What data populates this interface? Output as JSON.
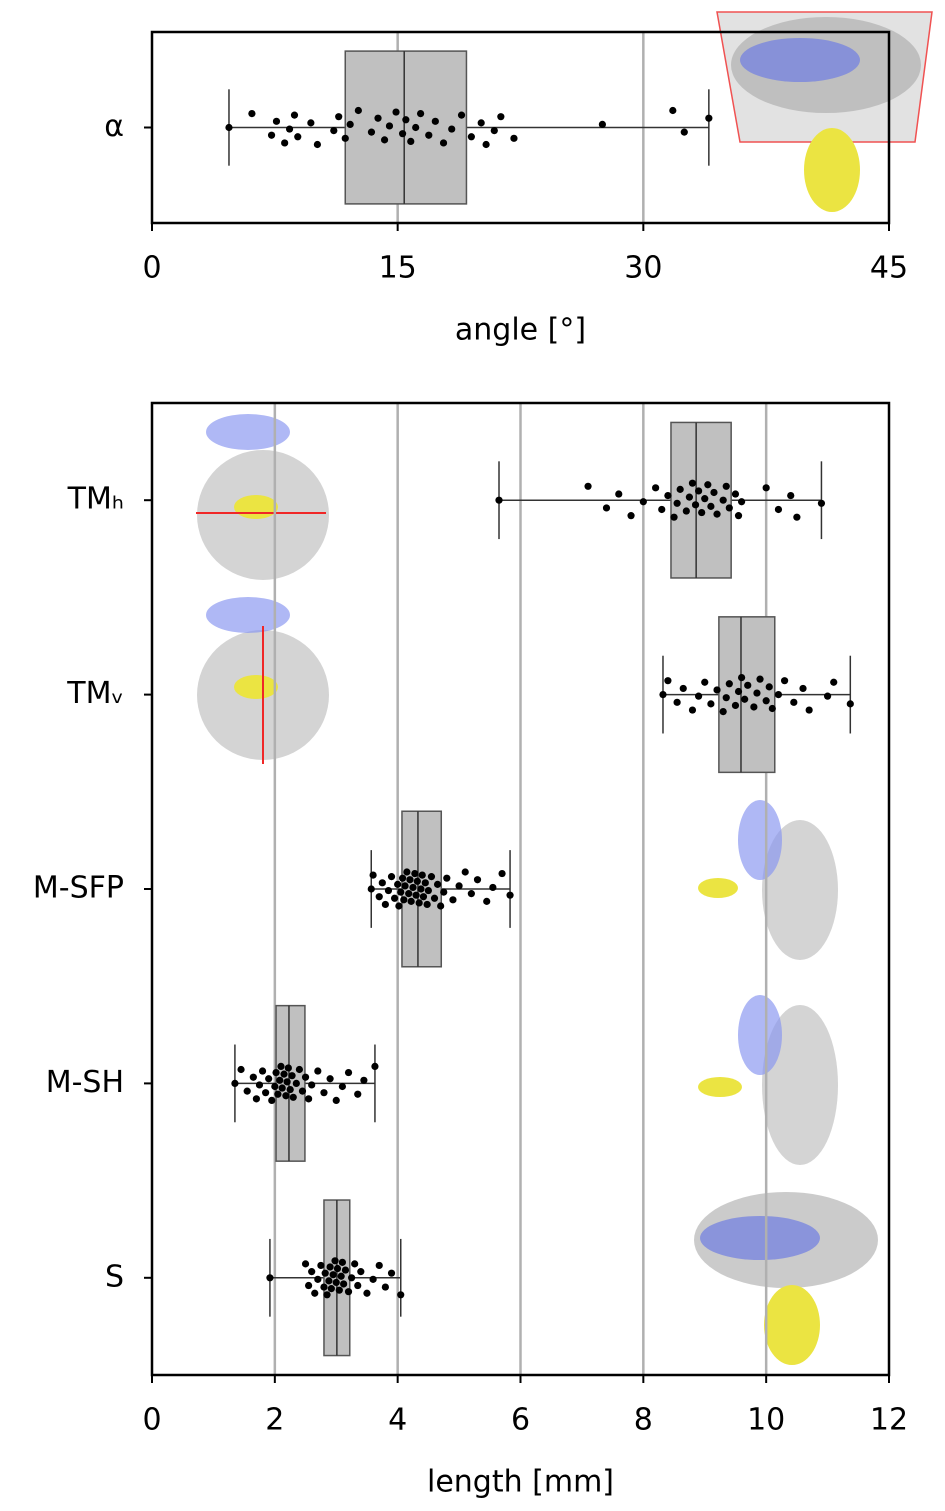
{
  "chart_data": [
    {
      "type": "box",
      "xlabel": "angle [°]",
      "xlim": [
        0,
        45
      ],
      "xticks": [
        0,
        15,
        30,
        45
      ],
      "grid": true,
      "color": "#c0c0c0",
      "categories": [
        "α"
      ],
      "boxes": [
        {
          "whislo": 4.7,
          "q1": 11.8,
          "med": 15.4,
          "q3": 19.2,
          "whishi": 34.0,
          "points": [
            4.7,
            6.1,
            7.3,
            7.6,
            8.1,
            8.4,
            8.7,
            8.9,
            9.7,
            10.1,
            11.1,
            11.4,
            11.8,
            12.1,
            12.6,
            13.4,
            13.8,
            14.2,
            14.5,
            14.9,
            15.3,
            15.5,
            15.8,
            16.1,
            16.4,
            16.9,
            17.3,
            17.8,
            18.3,
            18.9,
            19.5,
            20.1,
            20.4,
            20.9,
            21.3,
            22.1,
            27.5,
            31.8,
            32.5,
            34.0
          ]
        }
      ]
    },
    {
      "type": "box",
      "xlabel": "length [mm]",
      "xlim": [
        0,
        12
      ],
      "xticks": [
        0,
        2,
        4,
        6,
        8,
        10,
        12
      ],
      "grid": true,
      "color": "#c0c0c0",
      "categories": [
        "TMₕ",
        "TMᵥ",
        "M-SFP",
        "M-SH",
        "S"
      ],
      "boxes": [
        {
          "whislo": 5.65,
          "q1": 8.45,
          "med": 8.86,
          "q3": 9.43,
          "whishi": 10.9,
          "points": [
            5.65,
            7.1,
            7.4,
            7.6,
            7.8,
            8.0,
            8.2,
            8.3,
            8.4,
            8.5,
            8.55,
            8.6,
            8.7,
            8.75,
            8.8,
            8.85,
            8.9,
            8.95,
            9.0,
            9.05,
            9.1,
            9.15,
            9.2,
            9.3,
            9.35,
            9.4,
            9.5,
            9.55,
            9.6,
            10.0,
            10.2,
            10.4,
            10.5,
            10.9
          ]
        },
        {
          "whislo": 8.32,
          "q1": 9.23,
          "med": 9.59,
          "q3": 10.14,
          "whishi": 11.37,
          "points": [
            8.32,
            8.4,
            8.55,
            8.65,
            8.8,
            8.9,
            9.0,
            9.1,
            9.2,
            9.3,
            9.35,
            9.4,
            9.5,
            9.55,
            9.6,
            9.65,
            9.7,
            9.8,
            9.85,
            9.9,
            10.0,
            10.05,
            10.1,
            10.2,
            10.3,
            10.45,
            10.6,
            10.7,
            11.0,
            11.1,
            11.37
          ]
        },
        {
          "whislo": 3.57,
          "q1": 4.07,
          "med": 4.33,
          "q3": 4.71,
          "whishi": 5.83,
          "points": [
            3.57,
            3.6,
            3.7,
            3.75,
            3.8,
            3.85,
            3.9,
            3.95,
            4.0,
            4.02,
            4.05,
            4.08,
            4.1,
            4.12,
            4.15,
            4.18,
            4.2,
            4.22,
            4.25,
            4.28,
            4.3,
            4.32,
            4.35,
            4.38,
            4.4,
            4.42,
            4.45,
            4.48,
            4.5,
            4.55,
            4.6,
            4.65,
            4.7,
            4.75,
            4.8,
            4.9,
            5.0,
            5.1,
            5.2,
            5.3,
            5.45,
            5.55,
            5.7,
            5.83
          ]
        },
        {
          "whislo": 1.35,
          "q1": 2.02,
          "med": 2.23,
          "q3": 2.49,
          "whishi": 3.63,
          "points": [
            1.35,
            1.45,
            1.55,
            1.65,
            1.7,
            1.75,
            1.8,
            1.85,
            1.9,
            1.95,
            2.0,
            2.02,
            2.05,
            2.08,
            2.1,
            2.12,
            2.15,
            2.18,
            2.2,
            2.22,
            2.25,
            2.28,
            2.3,
            2.35,
            2.4,
            2.45,
            2.5,
            2.55,
            2.6,
            2.7,
            2.8,
            2.9,
            3.0,
            3.1,
            3.2,
            3.35,
            3.45,
            3.63
          ]
        },
        {
          "whislo": 1.92,
          "q1": 2.8,
          "med": 3.01,
          "q3": 3.22,
          "whishi": 4.05,
          "points": [
            1.92,
            2.5,
            2.55,
            2.6,
            2.65,
            2.7,
            2.75,
            2.8,
            2.82,
            2.85,
            2.88,
            2.9,
            2.92,
            2.95,
            2.98,
            3.0,
            3.02,
            3.05,
            3.08,
            3.1,
            3.12,
            3.15,
            3.2,
            3.25,
            3.3,
            3.35,
            3.4,
            3.5,
            3.6,
            3.7,
            3.8,
            3.9,
            4.05
          ]
        }
      ]
    }
  ]
}
